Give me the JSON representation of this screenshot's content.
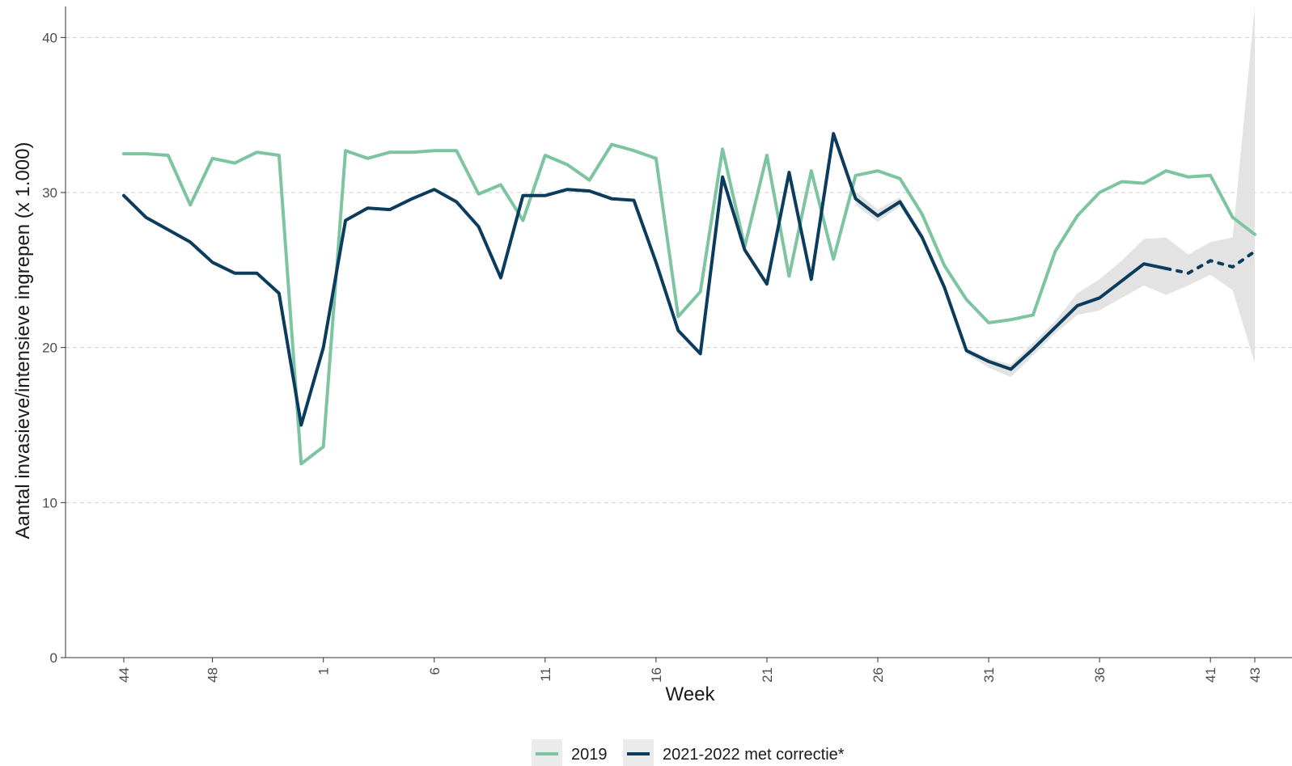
{
  "chart_data": {
    "type": "line",
    "title": "",
    "xlabel": "Week",
    "ylabel": "Aantal invasieve/intensieve ingrepen (x 1.000)",
    "ylim": [
      0,
      42
    ],
    "yticks": [
      0,
      10,
      20,
      30,
      40
    ],
    "x_tick_labels": [
      "44",
      "48",
      "1",
      "6",
      "11",
      "16",
      "21",
      "26",
      "31",
      "36",
      "41",
      "43"
    ],
    "x_tick_index": [
      0,
      4,
      9,
      14,
      19,
      24,
      29,
      34,
      39,
      44,
      49,
      51
    ],
    "n_points": 52,
    "grid": "horizontal dashed",
    "legend_position": "bottom",
    "colors": {
      "series_2019": "#7dc4a0",
      "series_2021": "#0b3c5d",
      "band": "#e3e3e3"
    },
    "series": [
      {
        "name": "2019",
        "values": [
          32.5,
          32.5,
          32.4,
          29.2,
          32.2,
          31.9,
          32.6,
          32.4,
          12.5,
          13.6,
          32.7,
          32.2,
          32.6,
          32.6,
          32.7,
          32.7,
          29.9,
          30.5,
          28.2,
          32.4,
          31.8,
          30.8,
          33.1,
          32.7,
          32.2,
          22.0,
          23.6,
          32.8,
          26.5,
          32.4,
          24.6,
          31.4,
          25.7,
          31.1,
          31.4,
          30.9,
          28.6,
          25.3,
          23.1,
          21.6,
          21.8,
          22.1,
          26.2,
          28.5,
          30.0,
          30.7,
          30.6,
          31.4,
          31.0,
          31.1,
          28.4,
          27.3
        ]
      },
      {
        "name": "2021-2022 met correctie*",
        "values": [
          29.8,
          28.4,
          27.6,
          26.8,
          25.5,
          24.8,
          24.8,
          23.5,
          15.0,
          20.0,
          28.2,
          29.0,
          28.9,
          29.6,
          30.2,
          29.4,
          27.8,
          24.5,
          29.8,
          29.8,
          30.2,
          30.1,
          29.6,
          29.5,
          25.5,
          21.1,
          19.6,
          31.0,
          26.3,
          24.1,
          31.3,
          24.4,
          33.8,
          29.6,
          28.5,
          29.4,
          27.1,
          23.9,
          19.8,
          19.1,
          18.6,
          19.9,
          21.3,
          22.7,
          23.2,
          24.3,
          25.4,
          25.1,
          24.8,
          25.6,
          25.2,
          26.2
        ],
        "projected_from_index": 47,
        "band_from_index": 33,
        "band_lower": [
          29.2,
          28.1,
          29.1,
          27.0,
          23.8,
          19.6,
          18.7,
          18.1,
          19.5,
          20.9,
          22.1,
          22.4,
          23.2,
          24.0,
          23.4,
          24.0,
          24.7,
          23.7,
          19.0
        ],
        "band_upper": [
          30.1,
          28.9,
          29.7,
          27.4,
          24.2,
          20.0,
          19.3,
          18.9,
          20.3,
          21.7,
          23.5,
          24.4,
          25.6,
          27.0,
          27.1,
          26.0,
          26.8,
          27.1,
          42.0
        ]
      }
    ]
  }
}
